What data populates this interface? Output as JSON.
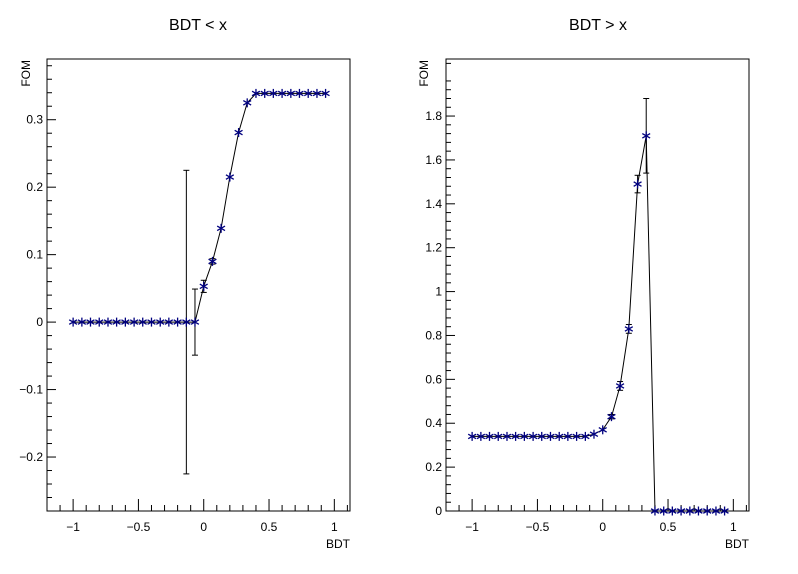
{
  "chart_data": [
    {
      "type": "line",
      "title": "BDT < x",
      "xlabel": "BDT",
      "ylabel": "FOM",
      "xlim": [
        -1.2,
        1.12
      ],
      "ylim": [
        -0.28,
        0.39
      ],
      "xticks": [
        -1,
        -0.5,
        0,
        0.5,
        1
      ],
      "xtick_labels": [
        "−1",
        "−0.5",
        "0",
        "0.5",
        "1"
      ],
      "yticks": [
        -0.2,
        -0.1,
        0,
        0.1,
        0.2,
        0.3
      ],
      "ytick_labels": [
        "−0.2",
        "−0.1",
        "0",
        "0.1",
        "0.2",
        "0.3"
      ],
      "grid": false,
      "marker_color": "#00007f",
      "series": [
        {
          "x": [
            -1.0,
            -0.933,
            -0.867,
            -0.8,
            -0.733,
            -0.667,
            -0.6,
            -0.533,
            -0.467,
            -0.4,
            -0.333,
            -0.267,
            -0.2,
            -0.133,
            -0.067,
            0.0,
            0.067,
            0.133,
            0.2,
            0.267,
            0.333,
            0.4,
            0.467,
            0.533,
            0.6,
            0.667,
            0.733,
            0.8,
            0.867,
            0.933
          ],
          "y": [
            0,
            0,
            0,
            0,
            0,
            0,
            0,
            0,
            0,
            0,
            0,
            0,
            0,
            0,
            0,
            0.053,
            0.09,
            0.139,
            0.215,
            0.281,
            0.325,
            0.339,
            0.339,
            0.339,
            0.339,
            0.339,
            0.339,
            0.339,
            0.339,
            0.339
          ],
          "yerr": [
            0,
            0,
            0,
            0,
            0,
            0,
            0,
            0,
            0,
            0,
            0,
            0,
            0,
            0.225,
            0.049,
            0.009,
            0.004,
            0,
            0,
            0,
            0,
            0,
            0,
            0,
            0,
            0,
            0,
            0,
            0,
            0
          ]
        }
      ]
    },
    {
      "type": "line",
      "title": "BDT > x",
      "xlabel": "BDT",
      "ylabel": "FOM",
      "xlim": [
        -1.2,
        1.12
      ],
      "ylim": [
        0,
        2.06
      ],
      "xticks": [
        -1,
        -0.5,
        0,
        0.5,
        1
      ],
      "xtick_labels": [
        "−1",
        "−0.5",
        "0",
        "0.5",
        "1"
      ],
      "yticks": [
        0,
        0.2,
        0.4,
        0.6,
        0.8,
        1,
        1.2,
        1.4,
        1.6,
        1.8
      ],
      "ytick_labels": [
        "0",
        "0.2",
        "0.4",
        "0.6",
        "0.8",
        "1",
        "1.2",
        "1.4",
        "1.6",
        "1.8"
      ],
      "grid": false,
      "marker_color": "#00007f",
      "series": [
        {
          "x": [
            -1.0,
            -0.933,
            -0.867,
            -0.8,
            -0.733,
            -0.667,
            -0.6,
            -0.533,
            -0.467,
            -0.4,
            -0.333,
            -0.267,
            -0.2,
            -0.133,
            -0.067,
            0.0,
            0.067,
            0.133,
            0.2,
            0.267,
            0.333,
            0.4,
            0.467,
            0.533,
            0.6,
            0.667,
            0.733,
            0.8,
            0.867,
            0.933
          ],
          "y": [
            0.34,
            0.34,
            0.34,
            0.34,
            0.34,
            0.34,
            0.34,
            0.34,
            0.34,
            0.34,
            0.34,
            0.34,
            0.34,
            0.34,
            0.35,
            0.37,
            0.43,
            0.57,
            0.83,
            1.49,
            1.71,
            0,
            0,
            0,
            0,
            0,
            0,
            0,
            0,
            0
          ],
          "yerr": [
            0,
            0,
            0,
            0,
            0,
            0,
            0,
            0,
            0,
            0,
            0,
            0,
            0,
            0,
            0,
            0,
            0.01,
            0.02,
            0.02,
            0.04,
            0.17,
            0,
            0,
            0,
            0,
            0,
            0,
            0,
            0,
            0
          ]
        }
      ]
    }
  ]
}
